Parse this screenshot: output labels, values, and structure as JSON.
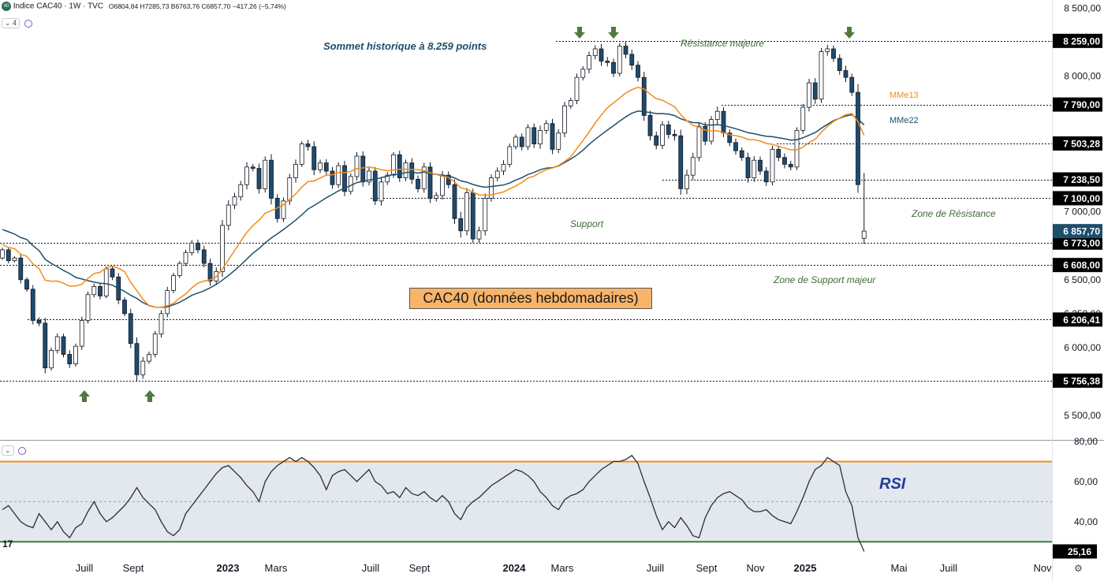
{
  "header": {
    "logo_text": "40",
    "title": "Indice CAC40 · 1W · TVC",
    "ohlc": "O6804,84 H7285,73 B6763,76 C6857,70 −417,26 (−5,74%)",
    "control_count": "4"
  },
  "colors": {
    "up": "#ffffff",
    "down": "#1e4b6e",
    "wick": "#131722",
    "mme13": "#f28c1a",
    "mme22": "#1f4e6b",
    "rsi_line": "#2a2e39",
    "rsi_band": "#e3e8ef",
    "rsi_upper": "#f28c1a",
    "rsi_lower": "#3f7d32",
    "annot_green": "#3f6b36",
    "annot_blue": "#1f4e6b",
    "arrow": "#4f7a3e",
    "price_tag": "#000000",
    "last_tag": "#1f4e6b"
  },
  "annotations": {
    "sommet": "Sommet historique à 8.259 points",
    "resistance_majeure": "Résistance majeure",
    "support": "Support",
    "zone_resistance": "Zone de Résistance",
    "zone_support": "Zone de Support majeur",
    "mme13": "MMe13",
    "mme22": "MMe22",
    "title_box": "CAC40 (données hebdomadaires)",
    "rsi": "RSI"
  },
  "chart_data": [
    {
      "type": "candlestick",
      "title": "CAC40 (données hebdomadaires)",
      "y_axis_ticks": [
        "8 500,00",
        "8 000,00",
        "7 000,00",
        "6 500,00",
        "6 250,00",
        "6 000,00",
        "5 500,00"
      ],
      "y_tick_values": [
        8500,
        8000,
        7000,
        6500,
        6250,
        6000,
        5500
      ],
      "ylim": [
        5320,
        8560
      ],
      "x_axis_ticks": [
        "Juill",
        "Sept",
        "2023",
        "Mars",
        "Juill",
        "Sept",
        "2024",
        "Mars",
        "Juill",
        "Sept",
        "Nov",
        "2025",
        "Mai",
        "Juill",
        "Nov"
      ],
      "levels": [
        {
          "value": 8259,
          "label": "8 259,00"
        },
        {
          "value": 7790,
          "label": "7 790,00"
        },
        {
          "value": 7503.28,
          "label": "7 503,28"
        },
        {
          "value": 7238.5,
          "label": "7 238,50"
        },
        {
          "value": 7100,
          "label": "7 100,00"
        },
        {
          "value": 6773,
          "label": "6 773,00"
        },
        {
          "value": 6608,
          "label": "6 608,00"
        },
        {
          "value": 6206.41,
          "label": "6 206,41"
        },
        {
          "value": 5756.38,
          "label": "5 756,38"
        }
      ],
      "last_price": {
        "value": 6857.7,
        "label": "6 857,70"
      },
      "series": [
        {
          "name": "MMe13"
        },
        {
          "name": "MMe22"
        }
      ],
      "closes": [
        6720,
        6640,
        6660,
        6500,
        6430,
        6200,
        6180,
        5850,
        5980,
        6080,
        5950,
        5880,
        6010,
        6200,
        6390,
        6450,
        6380,
        6580,
        6520,
        6350,
        6250,
        6030,
        5800,
        5900,
        5950,
        6100,
        6250,
        6420,
        6530,
        6620,
        6700,
        6770,
        6720,
        6620,
        6490,
        6560,
        6900,
        7050,
        7110,
        7200,
        7330,
        7320,
        7170,
        7380,
        7100,
        6950,
        7080,
        7250,
        7350,
        7500,
        7480,
        7310,
        7360,
        7300,
        7200,
        7340,
        7150,
        7260,
        7410,
        7220,
        7300,
        7080,
        7220,
        7270,
        7420,
        7250,
        7360,
        7240,
        7170,
        7330,
        7100,
        7120,
        7270,
        7200,
        6950,
        6860,
        7140,
        6800,
        6860,
        7100,
        7250,
        7300,
        7350,
        7480,
        7550,
        7480,
        7620,
        7500,
        7600,
        7650,
        7460,
        7580,
        7780,
        7820,
        7990,
        8050,
        8150,
        8200,
        8110,
        8100,
        8020,
        8220,
        8160,
        8080,
        7990,
        7710,
        7560,
        7490,
        7640,
        7570,
        7560,
        7170,
        7270,
        7400,
        7630,
        7520,
        7680,
        7740,
        7580,
        7510,
        7450,
        7400,
        7250,
        7380,
        7300,
        7220,
        7460,
        7400,
        7350,
        7330,
        7600,
        7770,
        7950,
        7830,
        8180,
        8200,
        8130,
        8040,
        7990,
        7880,
        7200,
        6858
      ],
      "ma13": [
        6760,
        6737,
        6728,
        6688,
        6672,
        6616,
        6582,
        6496,
        6488,
        6490,
        6474,
        6452,
        6454,
        6466,
        6510,
        6545,
        6554,
        6589,
        6599,
        6584,
        6559,
        6480,
        6419,
        6356,
        6308,
        6298,
        6296,
        6308,
        6326,
        6364,
        6395,
        6440,
        6475,
        6490,
        6499,
        6522,
        6578,
        6646,
        6714,
        6784,
        6848,
        6899,
        6937,
        6990,
        7008,
        7029,
        7052,
        7092,
        7131,
        7183,
        7222,
        7227,
        7249,
        7270,
        7273,
        7290,
        7287,
        7298,
        7318,
        7323,
        7330,
        7321,
        7310,
        7302,
        7308,
        7313,
        7314,
        7311,
        7310,
        7303,
        7287,
        7275,
        7262,
        7252,
        7219,
        7177,
        7167,
        7143,
        7125,
        7122,
        7126,
        7136,
        7146,
        7169,
        7190,
        7216,
        7249,
        7263,
        7289,
        7311,
        7322,
        7341,
        7370,
        7405,
        7465,
        7525,
        7587,
        7655,
        7712,
        7766,
        7802,
        7838,
        7875,
        7900,
        7917,
        7903,
        7867,
        7833,
        7822,
        7797,
        7774,
        7716,
        7670,
        7637,
        7622,
        7602,
        7596,
        7597,
        7583,
        7567,
        7561,
        7551,
        7532,
        7531,
        7521,
        7503,
        7497,
        7482,
        7470,
        7457,
        7457,
        7476,
        7510,
        7534,
        7585,
        7630,
        7665,
        7690,
        7715,
        7724,
        7663,
        7563
      ],
      "ma22": [
        6870,
        6853,
        6836,
        6810,
        6796,
        6750,
        6715,
        6650,
        6620,
        6595,
        6568,
        6545,
        6517,
        6505,
        6493,
        6482,
        6474,
        6470,
        6460,
        6436,
        6414,
        6385,
        6362,
        6331,
        6310,
        6298,
        6296,
        6300,
        6315,
        6334,
        6358,
        6385,
        6402,
        6418,
        6440,
        6465,
        6497,
        6531,
        6568,
        6609,
        6652,
        6695,
        6730,
        6771,
        6807,
        6838,
        6870,
        6904,
        6939,
        6978,
        7020,
        7047,
        7074,
        7104,
        7128,
        7155,
        7173,
        7194,
        7215,
        7224,
        7235,
        7240,
        7251,
        7262,
        7276,
        7276,
        7290,
        7292,
        7285,
        7293,
        7282,
        7275,
        7270,
        7263,
        7250,
        7228,
        7218,
        7201,
        7189,
        7181,
        7186,
        7192,
        7197,
        7212,
        7234,
        7251,
        7275,
        7290,
        7310,
        7322,
        7325,
        7338,
        7363,
        7389,
        7418,
        7454,
        7496,
        7534,
        7568,
        7602,
        7634,
        7668,
        7699,
        7726,
        7742,
        7738,
        7731,
        7723,
        7723,
        7719,
        7709,
        7685,
        7670,
        7657,
        7656,
        7640,
        7639,
        7642,
        7635,
        7624,
        7612,
        7598,
        7583,
        7575,
        7565,
        7556,
        7553,
        7545,
        7538,
        7528,
        7531,
        7545,
        7565,
        7584,
        7616,
        7644,
        7671,
        7689,
        7706,
        7715,
        7683,
        7640
      ]
    },
    {
      "type": "line",
      "title": "RSI",
      "y_axis_ticks": [
        "80,00",
        "60,00",
        "40,00"
      ],
      "y_tick_values": [
        80,
        60,
        40
      ],
      "ylim": [
        23,
        80
      ],
      "band": [
        30,
        70
      ],
      "last_value": {
        "value": 25.16,
        "label": "25,16"
      },
      "values": [
        46,
        48,
        44,
        40,
        38,
        37,
        44,
        40,
        36,
        40,
        35,
        32,
        37,
        39,
        45,
        50,
        44,
        40,
        42,
        45,
        48,
        52,
        57,
        52,
        49,
        46,
        40,
        35,
        33,
        36,
        44,
        48,
        52,
        56,
        60,
        64,
        67,
        68,
        65,
        62,
        58,
        55,
        50,
        60,
        65,
        68,
        70,
        72,
        70,
        72,
        70,
        67,
        63,
        56,
        63,
        65,
        66,
        63,
        60,
        63,
        66,
        60,
        58,
        54,
        55,
        52,
        57,
        54,
        53,
        55,
        52,
        50,
        53,
        50,
        44,
        41,
        47,
        50,
        52,
        55,
        58,
        60,
        62,
        64,
        66,
        65,
        63,
        60,
        55,
        52,
        48,
        46,
        51,
        53,
        54,
        56,
        60,
        63,
        66,
        68,
        70,
        70,
        71,
        73,
        69,
        60,
        52,
        43,
        36,
        40,
        37,
        42,
        38,
        33,
        32,
        42,
        48,
        52,
        54,
        55,
        53,
        51,
        47,
        45,
        45,
        46,
        43,
        41,
        40,
        39,
        45,
        52,
        60,
        66,
        68,
        72,
        70,
        68,
        55,
        48,
        32,
        25.16
      ]
    }
  ]
}
